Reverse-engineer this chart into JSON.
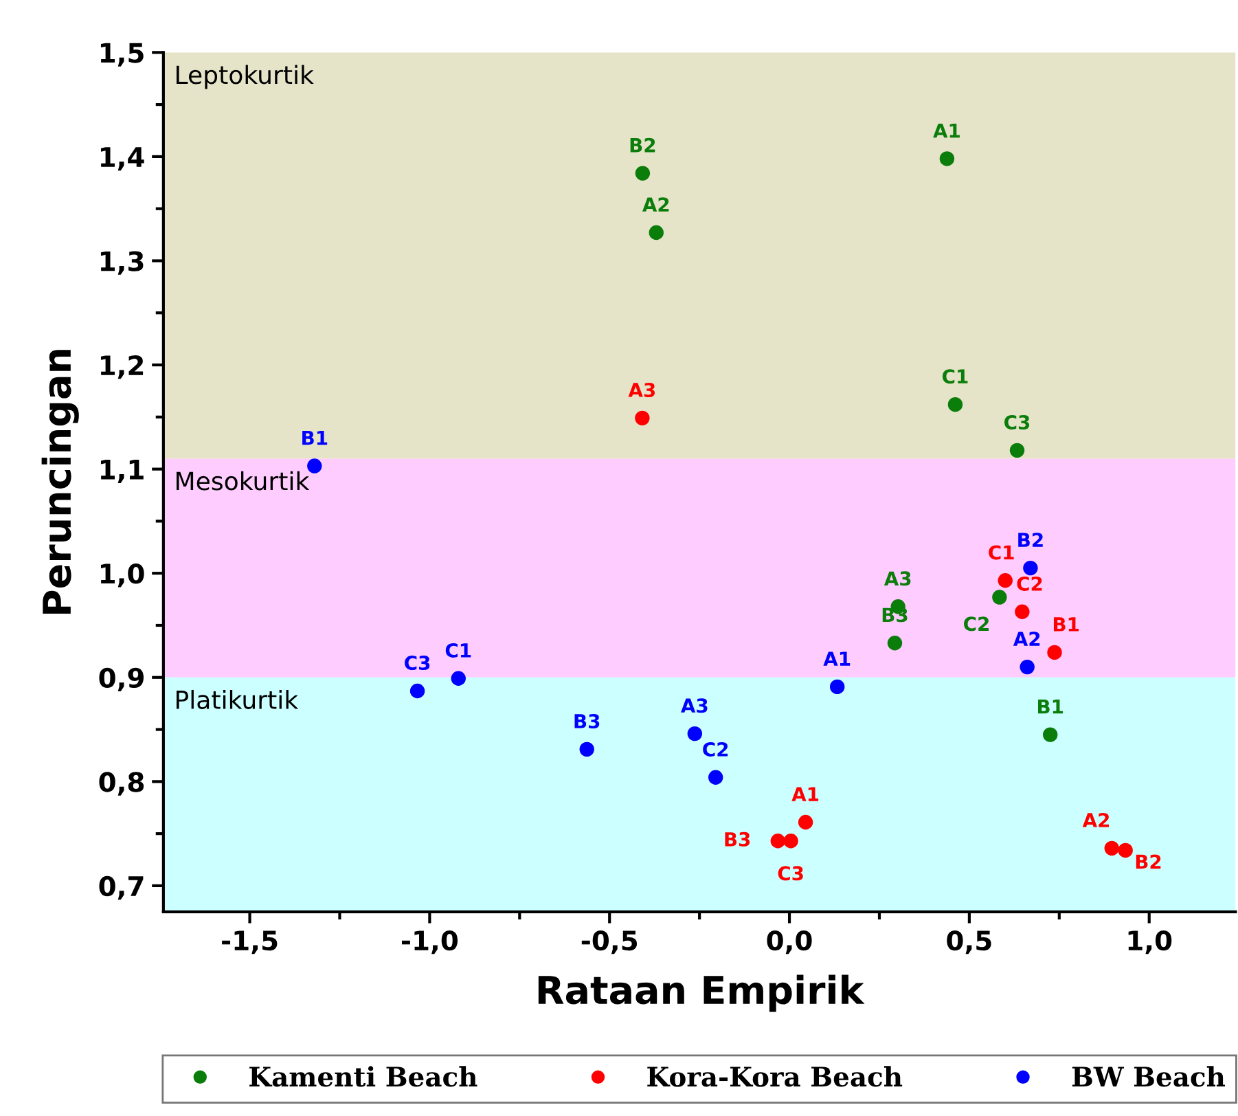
{
  "chart_data": {
    "type": "scatter",
    "xlabel": "Rataan Empirik",
    "ylabel": "Peruncingan",
    "xlim": [
      -1.74,
      1.24
    ],
    "ylim": [
      0.675,
      1.5
    ],
    "xticks": [
      {
        "value": -1.5,
        "label": "-1,5"
      },
      {
        "value": -1.0,
        "label": "-1,0"
      },
      {
        "value": -0.5,
        "label": "-0,5"
      },
      {
        "value": 0.0,
        "label": "0,0"
      },
      {
        "value": 0.5,
        "label": "0,5"
      },
      {
        "value": 1.0,
        "label": "1,0"
      }
    ],
    "yticks": [
      {
        "value": 0.7,
        "label": "0,7"
      },
      {
        "value": 0.8,
        "label": "0,8"
      },
      {
        "value": 0.9,
        "label": "0,9"
      },
      {
        "value": 1.0,
        "label": "1,0"
      },
      {
        "value": 1.1,
        "label": "1,1"
      },
      {
        "value": 1.2,
        "label": "1,2"
      },
      {
        "value": 1.3,
        "label": "1,3"
      },
      {
        "value": 1.4,
        "label": "1,4"
      },
      {
        "value": 1.5,
        "label": "1,5"
      }
    ],
    "bands": [
      {
        "axis": "y",
        "from": 1.11,
        "to": 1.5,
        "label": "Leptokurtik",
        "color": "#e6e4c8"
      },
      {
        "axis": "y",
        "from": 0.9,
        "to": 1.11,
        "label": "Mesokurtik",
        "color": "#ffccff"
      },
      {
        "axis": "y",
        "from": 0.675,
        "to": 0.9,
        "label": "Platikurtik",
        "color": "#ccffff"
      }
    ],
    "marker": "circle",
    "grid": false,
    "legend": "bottom",
    "series": [
      {
        "name": "Kamenti Beach",
        "color": "#0a7d0a",
        "x": [
          0.438,
          -0.37,
          0.302,
          0.725,
          -0.408,
          0.293,
          0.461,
          0.584,
          0.633
        ],
        "values": [
          1.398,
          1.327,
          0.968,
          0.845,
          1.384,
          0.933,
          1.162,
          0.977,
          1.118
        ],
        "value_labels": [
          "A1",
          "A2",
          "A3",
          "B1",
          "B2",
          "B3",
          "C1",
          "C2",
          "C3"
        ]
      },
      {
        "name": "Kora-Kora Beach",
        "color": "#ff0000",
        "x": [
          0.045,
          0.896,
          -0.409,
          0.737,
          0.934,
          -0.032,
          0.6,
          0.647,
          0.004
        ],
        "values": [
          0.761,
          0.736,
          1.149,
          0.924,
          0.734,
          0.743,
          0.993,
          0.963,
          0.743
        ],
        "value_labels": [
          "A1",
          "A2",
          "A3",
          "B1",
          "B2",
          "B3",
          "C1",
          "C2",
          "C3"
        ]
      },
      {
        "name": "BW Beach",
        "color": "#0000ff",
        "x": [
          0.133,
          0.661,
          -0.263,
          -1.32,
          0.67,
          -0.563,
          -0.92,
          -0.205,
          -1.034
        ],
        "values": [
          0.891,
          0.91,
          0.846,
          1.103,
          1.005,
          0.831,
          0.899,
          0.804,
          0.887
        ],
        "value_labels": [
          "A1",
          "A2",
          "A3",
          "B1",
          "B2",
          "B3",
          "C1",
          "C2",
          "C3"
        ]
      }
    ]
  }
}
